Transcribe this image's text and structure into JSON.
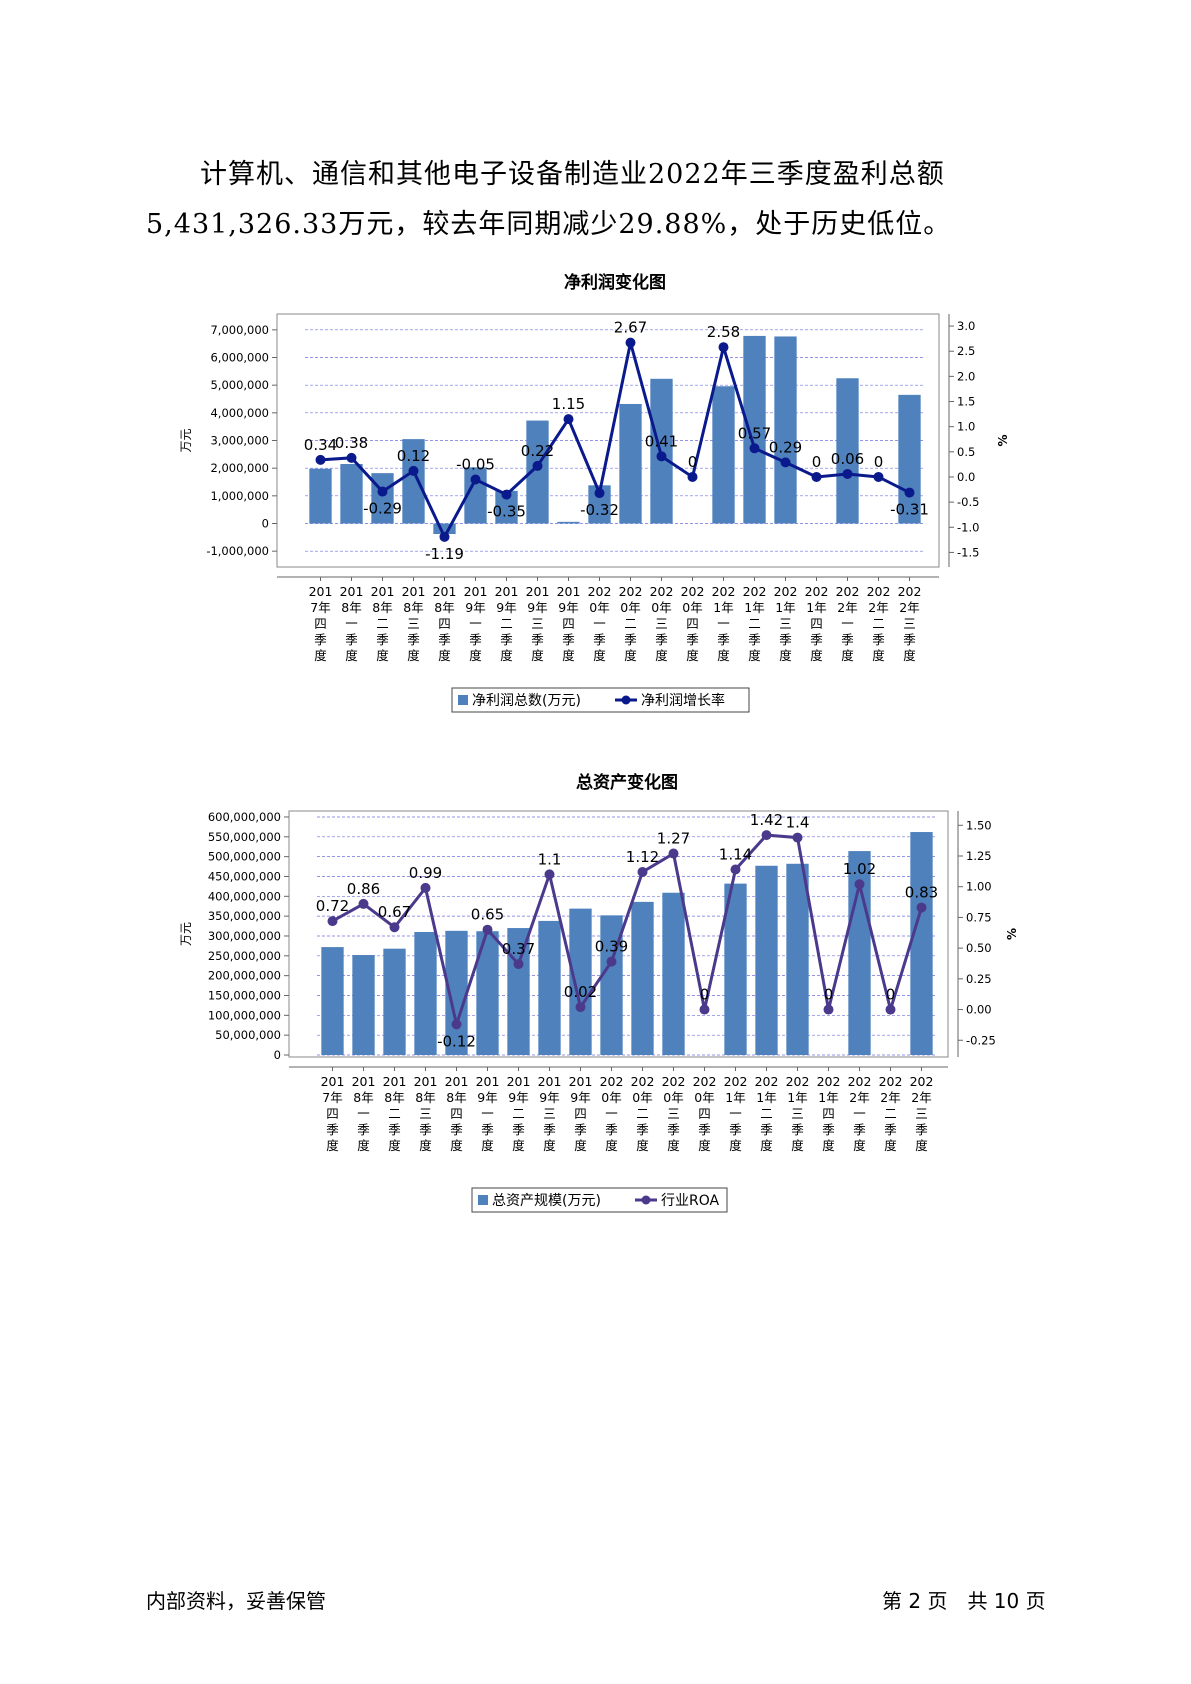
{
  "paragraph": {
    "line1": "计算机、通信和其他电子设备制造业2022年三季度盈利总额",
    "line2": "5,431,326.33万元，较去年同期减少29.88%，处于历史低位。"
  },
  "footer": {
    "left": "内部资料，妥善保管",
    "right": "第 2 页　共 10 页"
  },
  "colors": {
    "bar": "#4f81bd",
    "line1": "#0a1a8c",
    "line2": "#4b3a8c",
    "grid": "#7070e0"
  },
  "chart_data": [
    {
      "type": "bar+line",
      "title": "净利润变化图",
      "ylabel": "万元",
      "y2label": "%",
      "ylim": [
        -1500000,
        7500000
      ],
      "y2lim": [
        -1.75,
        3.2
      ],
      "yticks": [
        -1000000,
        0,
        1000000,
        2000000,
        3000000,
        4000000,
        5000000,
        6000000,
        7000000
      ],
      "ytick_labels": [
        "-1,000,000",
        "0",
        "1,000,000",
        "2,000,000",
        "3,000,000",
        "4,000,000",
        "5,000,000",
        "6,000,000",
        "7,000,000"
      ],
      "y2ticks": [
        -1.5,
        -1.0,
        -0.5,
        0.0,
        0.5,
        1.0,
        1.5,
        2.0,
        2.5,
        3.0
      ],
      "y2tick_labels": [
        "-1.5",
        "-1.0",
        "-0.5",
        "0.0",
        "0.5",
        "1.0",
        "1.5",
        "2.0",
        "2.5",
        "3.0"
      ],
      "categories": [
        [
          "201",
          "7年",
          "四",
          "季",
          "度"
        ],
        [
          "201",
          "8年",
          "一",
          "季",
          "度"
        ],
        [
          "201",
          "8年",
          "二",
          "季",
          "度"
        ],
        [
          "201",
          "8年",
          "三",
          "季",
          "度"
        ],
        [
          "201",
          "8年",
          "四",
          "季",
          "度"
        ],
        [
          "201",
          "9年",
          "一",
          "季",
          "度"
        ],
        [
          "201",
          "9年",
          "二",
          "季",
          "度"
        ],
        [
          "201",
          "9年",
          "三",
          "季",
          "度"
        ],
        [
          "201",
          "9年",
          "四",
          "季",
          "度"
        ],
        [
          "202",
          "0年",
          "一",
          "季",
          "度"
        ],
        [
          "202",
          "0年",
          "二",
          "季",
          "度"
        ],
        [
          "202",
          "0年",
          "三",
          "季",
          "度"
        ],
        [
          "202",
          "0年",
          "四",
          "季",
          "度"
        ],
        [
          "202",
          "1年",
          "一",
          "季",
          "度"
        ],
        [
          "202",
          "1年",
          "二",
          "季",
          "度"
        ],
        [
          "202",
          "1年",
          "三",
          "季",
          "度"
        ],
        [
          "202",
          "1年",
          "四",
          "季",
          "度"
        ],
        [
          "202",
          "2年",
          "一",
          "季",
          "度"
        ],
        [
          "202",
          "2年",
          "二",
          "季",
          "度"
        ],
        [
          "202",
          "2年",
          "三",
          "季",
          "度"
        ]
      ],
      "series": [
        {
          "name": "净利润总数(万元)",
          "kind": "bar",
          "values": [
            1980000,
            2150000,
            1820000,
            3050000,
            -380000,
            2030000,
            1180000,
            3720000,
            60000,
            1380000,
            4320000,
            5230000,
            0,
            4960000,
            6780000,
            6760000,
            0,
            5250000,
            0,
            4650000
          ]
        },
        {
          "name": "净利润增长率",
          "kind": "line",
          "values": [
            0.34,
            0.38,
            -0.29,
            0.12,
            -1.19,
            -0.05,
            -0.35,
            0.22,
            1.15,
            -0.32,
            2.67,
            0.41,
            0,
            2.58,
            0.57,
            0.29,
            0,
            0.06,
            0,
            -0.31
          ],
          "labels": [
            "0.34",
            "0.38",
            "-0.29",
            "0.12",
            "-1.19",
            "-0.05",
            "-0.35",
            "0.22",
            "1.15",
            "-0.32",
            "2.67",
            "0.41",
            "0",
            "2.58",
            "0.57",
            "0.29",
            "0",
            "0.06",
            "0",
            "-0.31"
          ]
        }
      ]
    },
    {
      "type": "bar+line",
      "title": "总资产变化图",
      "ylabel": "万元",
      "y2label": "%",
      "ylim": [
        0,
        610000000
      ],
      "y2lim": [
        -0.37,
        1.6
      ],
      "yticks": [
        0,
        50000000,
        100000000,
        150000000,
        200000000,
        250000000,
        300000000,
        350000000,
        400000000,
        450000000,
        500000000,
        550000000,
        600000000
      ],
      "ytick_labels": [
        "0",
        "50,000,000",
        "100,000,000",
        "150,000,000",
        "200,000,000",
        "250,000,000",
        "300,000,000",
        "350,000,000",
        "400,000,000",
        "450,000,000",
        "500,000,000",
        "550,000,000",
        "600,000,000"
      ],
      "y2ticks": [
        -0.25,
        0.0,
        0.25,
        0.5,
        0.75,
        1.0,
        1.25,
        1.5
      ],
      "y2tick_labels": [
        "-0.25",
        "0.00",
        "0.25",
        "0.50",
        "0.75",
        "1.00",
        "1.25",
        "1.50"
      ],
      "categories": [
        [
          "201",
          "7年",
          "四",
          "季",
          "度"
        ],
        [
          "201",
          "8年",
          "一",
          "季",
          "度"
        ],
        [
          "201",
          "8年",
          "二",
          "季",
          "度"
        ],
        [
          "201",
          "8年",
          "三",
          "季",
          "度"
        ],
        [
          "201",
          "8年",
          "四",
          "季",
          "度"
        ],
        [
          "201",
          "9年",
          "一",
          "季",
          "度"
        ],
        [
          "201",
          "9年",
          "二",
          "季",
          "度"
        ],
        [
          "201",
          "9年",
          "三",
          "季",
          "度"
        ],
        [
          "201",
          "9年",
          "四",
          "季",
          "度"
        ],
        [
          "202",
          "0年",
          "一",
          "季",
          "度"
        ],
        [
          "202",
          "0年",
          "二",
          "季",
          "度"
        ],
        [
          "202",
          "0年",
          "三",
          "季",
          "度"
        ],
        [
          "202",
          "0年",
          "四",
          "季",
          "度"
        ],
        [
          "202",
          "1年",
          "一",
          "季",
          "度"
        ],
        [
          "202",
          "1年",
          "二",
          "季",
          "度"
        ],
        [
          "202",
          "1年",
          "三",
          "季",
          "度"
        ],
        [
          "202",
          "1年",
          "四",
          "季",
          "度"
        ],
        [
          "202",
          "2年",
          "一",
          "季",
          "度"
        ],
        [
          "202",
          "2年",
          "二",
          "季",
          "度"
        ],
        [
          "202",
          "2年",
          "三",
          "季",
          "度"
        ]
      ],
      "series": [
        {
          "name": "总资产规模(万元)",
          "kind": "bar",
          "values": [
            272000000,
            252000000,
            268000000,
            310000000,
            313000000,
            312000000,
            320000000,
            338000000,
            369000000,
            352000000,
            386000000,
            409000000,
            0,
            432000000,
            477000000,
            482000000,
            0,
            514000000,
            0,
            562000000
          ]
        },
        {
          "name": "行业ROA",
          "kind": "line",
          "values": [
            0.72,
            0.86,
            0.67,
            0.99,
            -0.12,
            0.65,
            0.37,
            1.1,
            0.02,
            0.39,
            1.12,
            1.27,
            0,
            1.14,
            1.42,
            1.4,
            0,
            1.02,
            0,
            0.83
          ],
          "labels": [
            "0.72",
            "0.86",
            "0.67",
            "0.99",
            "-0.12",
            "0.65",
            "0.37",
            "1.1",
            "0.02",
            "0.39",
            "1.12",
            "1.27",
            "0",
            "1.14",
            "1.42",
            "1.4",
            "0",
            "1.02",
            "0",
            "0.83"
          ]
        }
      ]
    }
  ]
}
